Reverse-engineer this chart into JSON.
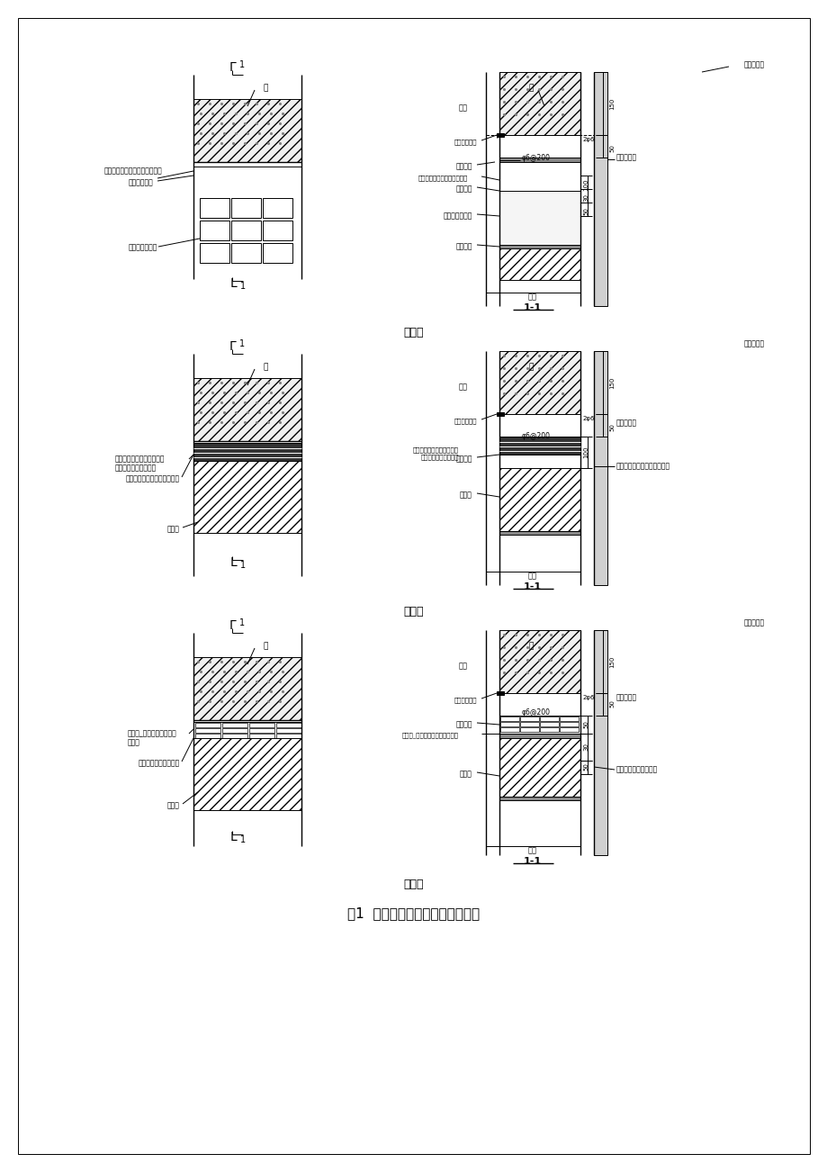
{
  "bg_color": "#ffffff",
  "line_color": "#000000",
  "hatch_color": "#000000",
  "title": "图1  外墙混凝土梁下砌体节点做法",
  "method_labels": [
    "做法一",
    "做法二",
    "做法三"
  ],
  "section_label": "1-1",
  "font_size_title": 11,
  "font_size_label": 9,
  "font_size_small": 6.5,
  "font_size_method": 9,
  "gray_light": "#e8e8e8",
  "gray_medium": "#cccccc",
  "gray_dark": "#999999"
}
